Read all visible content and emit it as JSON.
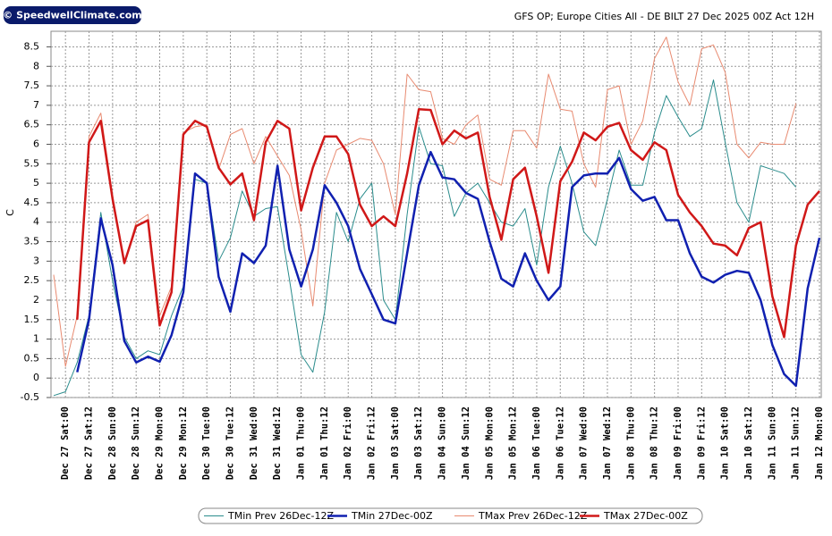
{
  "chart_data": {
    "type": "line",
    "logo": "© SpeedwellClimate.com",
    "title": "GFS OP; Europe Cities All - DE BILT 27 Dec 2025 00Z Act 12H",
    "y_label": "C",
    "categories": [
      null,
      "Dec 27 Sat:00",
      null,
      "Dec 27 Sat:12",
      null,
      "Dec 28 Sun:00",
      null,
      "Dec 28 Sun:12",
      null,
      "Dec 29 Mon:00",
      null,
      "Dec 29 Mon:12",
      null,
      "Dec 30 Tue:00",
      null,
      "Dec 30 Tue:12",
      null,
      "Dec 31 Wed:00",
      null,
      "Dec 31 Wed:12",
      null,
      "Jan 01 Thu:00",
      null,
      "Jan 01 Thu:12",
      null,
      "Jan 02 Fri:00",
      null,
      "Jan 02 Fri:12",
      null,
      "Jan 03 Sat:00",
      null,
      "Jan 03 Sat:12",
      null,
      "Jan 04 Sun:00",
      null,
      "Jan 04 Sun:12",
      null,
      "Jan 05 Mon:00",
      null,
      "Jan 05 Mon:12",
      null,
      "Jan 06 Tue:00",
      null,
      "Jan 06 Tue:12",
      null,
      "Jan 07 Wed:00",
      null,
      "Jan 07 Wed:12",
      null,
      "Jan 08 Thu:00",
      null,
      "Jan 08 Thu:12",
      null,
      "Jan 09 Fri:00",
      null,
      "Jan 09 Fri:12",
      null,
      "Jan 10 Sat:00",
      null,
      "Jan 10 Sat:12",
      null,
      "Jan 11 Sun:00",
      null,
      "Jan 11 Sun:12",
      null,
      "Jan 12 Mon:00"
    ],
    "series": [
      {
        "name": "TMin Prev 26Dec-12Z",
        "color": "#2a8c8c",
        "width": 1,
        "values": [
          -0.45,
          -0.35,
          0.4,
          1.6,
          4.25,
          2.5,
          1.05,
          0.5,
          0.7,
          0.6,
          1.6,
          2.35,
          5.1,
          5.0,
          3.0,
          3.6,
          4.8,
          4.15,
          4.35,
          4.4,
          2.55,
          0.6,
          0.15,
          1.7,
          4.25,
          3.5,
          4.6,
          5.0,
          2.0,
          1.5,
          4.2,
          6.45,
          5.5,
          5.45,
          4.15,
          4.75,
          5.0,
          4.5,
          4.0,
          3.9,
          4.35,
          2.9,
          4.9,
          5.95,
          5.0,
          3.75,
          3.4,
          4.6,
          5.85,
          4.95,
          4.95,
          6.3,
          7.25,
          6.7,
          6.2,
          6.4,
          7.65,
          6.05,
          4.5,
          4.0,
          5.45,
          5.35,
          5.25,
          4.9,
          null,
          null
        ]
      },
      {
        "name": "TMin 27Dec-00Z",
        "color": "#1020b0",
        "width": 2.5,
        "values": [
          null,
          null,
          0.15,
          1.5,
          4.1,
          2.9,
          0.95,
          0.4,
          0.55,
          0.42,
          1.1,
          2.2,
          5.25,
          5.0,
          2.6,
          1.7,
          3.2,
          2.95,
          3.4,
          5.45,
          3.3,
          2.35,
          3.3,
          4.95,
          4.5,
          3.9,
          2.8,
          2.15,
          1.5,
          1.4,
          3.2,
          4.95,
          5.8,
          5.15,
          5.1,
          4.75,
          4.6,
          3.5,
          2.55,
          2.35,
          3.2,
          2.5,
          2.0,
          2.35,
          4.9,
          5.2,
          5.25,
          5.25,
          5.65,
          4.85,
          4.55,
          4.65,
          4.05,
          4.05,
          3.2,
          2.6,
          2.45,
          2.65,
          2.75,
          2.7,
          2.0,
          0.85,
          0.1,
          -0.2,
          2.3,
          3.6
        ]
      },
      {
        "name": "TMax Prev 26Dec-12Z",
        "color": "#e88a70",
        "width": 1,
        "values": [
          2.65,
          0.3,
          1.6,
          6.2,
          6.8,
          4.7,
          2.95,
          4.0,
          4.2,
          1.6,
          2.35,
          6.3,
          6.45,
          6.5,
          5.35,
          6.25,
          6.4,
          5.5,
          6.2,
          5.7,
          5.2,
          3.8,
          1.85,
          5.0,
          5.85,
          6.0,
          6.15,
          6.1,
          5.5,
          4.2,
          7.8,
          7.4,
          7.35,
          6.15,
          6.0,
          6.5,
          6.75,
          5.1,
          4.95,
          6.35,
          6.35,
          5.9,
          7.8,
          6.9,
          6.85,
          5.5,
          4.9,
          7.4,
          7.5,
          6.0,
          6.6,
          8.2,
          8.75,
          7.6,
          7.0,
          8.45,
          8.55,
          7.85,
          6.0,
          5.65,
          6.05,
          6.0,
          6.0,
          7.05,
          null,
          null
        ]
      },
      {
        "name": "TMax 27Dec-00Z",
        "color": "#d01818",
        "width": 2.5,
        "values": [
          null,
          null,
          1.5,
          6.05,
          6.6,
          4.6,
          2.95,
          3.9,
          4.05,
          1.35,
          2.2,
          6.25,
          6.6,
          6.45,
          5.4,
          4.97,
          5.25,
          4.05,
          6.05,
          6.6,
          6.4,
          4.3,
          5.4,
          6.2,
          6.2,
          5.75,
          4.45,
          3.9,
          4.15,
          3.9,
          5.25,
          6.9,
          6.88,
          6.0,
          6.35,
          6.15,
          6.3,
          4.65,
          3.55,
          5.1,
          5.4,
          4.15,
          2.7,
          5.05,
          5.55,
          6.3,
          6.1,
          6.45,
          6.55,
          5.85,
          5.6,
          6.05,
          5.85,
          4.7,
          4.25,
          3.9,
          3.45,
          3.4,
          3.15,
          3.85,
          4.0,
          2.1,
          1.05,
          3.4,
          4.45,
          4.8
        ]
      }
    ],
    "ylim": [
      -0.5,
      8.9
    ],
    "yticks": [
      -0.5,
      0,
      0.5,
      1,
      1.5,
      2,
      2.5,
      3,
      3.5,
      4,
      4.5,
      5,
      5.5,
      6,
      6.5,
      7,
      7.5,
      8,
      8.5
    ],
    "grid": true
  }
}
